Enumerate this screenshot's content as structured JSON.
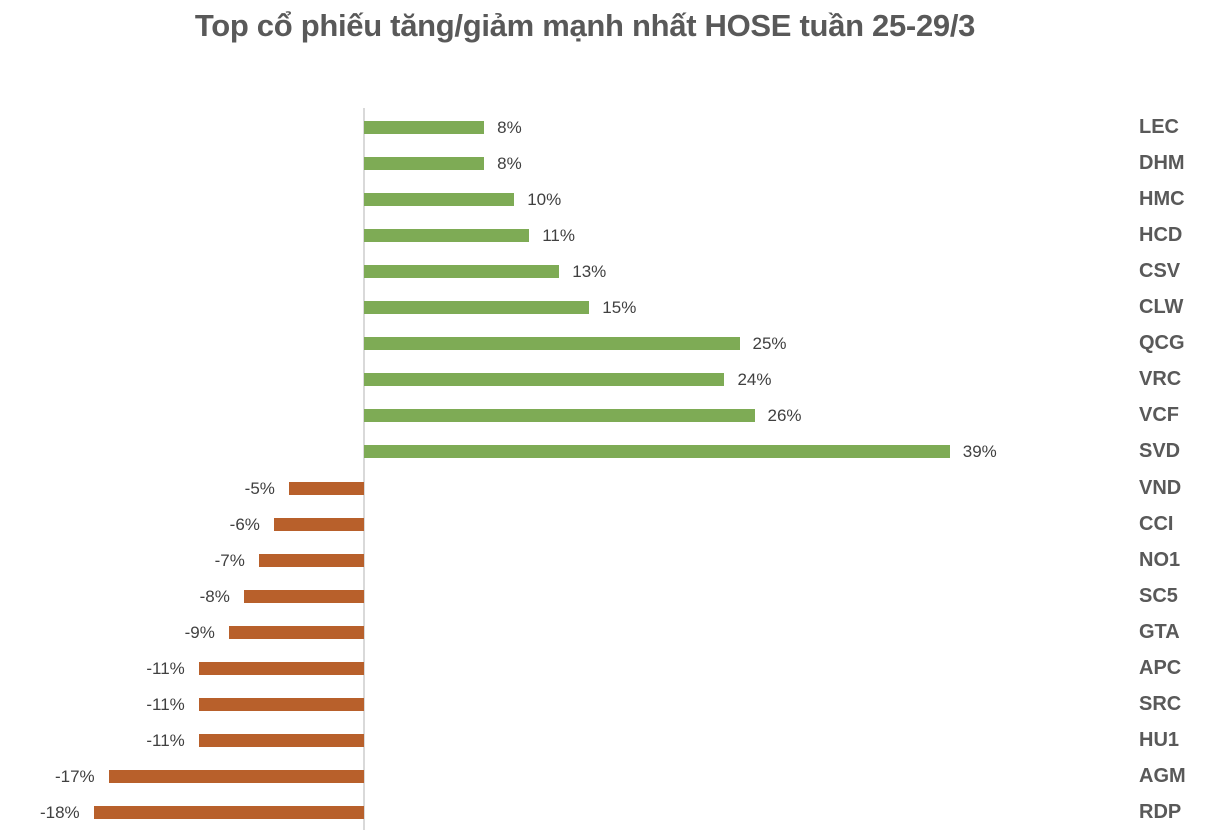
{
  "chart_data": {
    "type": "bar",
    "orientation": "horizontal",
    "title": "Top cổ phiếu tăng/giảm mạnh nhất HOSE tuần 25-29/3",
    "xlabel": "",
    "ylabel": "",
    "unit": "%",
    "grid": false,
    "legend": null,
    "xlim": [
      -19,
      40
    ],
    "categories": [
      "LEC",
      "DHM",
      "HMC",
      "HCD",
      "CSV",
      "CLW",
      "QCG",
      "VRC",
      "VCF",
      "SVD",
      "VND",
      "CCI",
      "NO1",
      "SC5",
      "GTA",
      "APC",
      "SRC",
      "HU1",
      "AGM",
      "RDP"
    ],
    "values": [
      8,
      8,
      10,
      11,
      13,
      15,
      25,
      24,
      26,
      39,
      -5,
      -6,
      -7,
      -8,
      -9,
      -11,
      -11,
      -11,
      -17,
      -18
    ],
    "labels": [
      "8%",
      "8%",
      "10%",
      "11%",
      "13%",
      "15%",
      "25%",
      "24%",
      "26%",
      "39%",
      "-5%",
      "-6%",
      "-7%",
      "-8%",
      "-9%",
      "-11%",
      "-11%",
      "-11%",
      "-17%",
      "-18%"
    ],
    "colors": {
      "positive": "#7eab55",
      "negative": "#b8602b",
      "axis": "#d9d9d9",
      "text": "#595959"
    }
  }
}
